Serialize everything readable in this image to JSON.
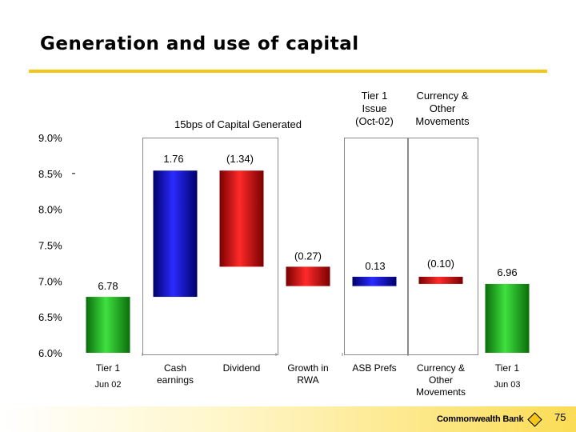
{
  "title": "Generation and use of capital",
  "header_notes": {
    "capital_generated": "15bps of Capital Generated",
    "tier1_issue": [
      "Tier 1",
      "Issue",
      "(Oct-02)"
    ],
    "currency_movements": [
      "Currency &",
      "Other",
      "Movements"
    ]
  },
  "chart_data": {
    "type": "waterfall",
    "y_axis": {
      "min": 6.0,
      "max": 9.0,
      "ticks": [
        "6.0%",
        "6.5%",
        "7.0%",
        "7.5%",
        "8.0%",
        "8.5%",
        "9.0%"
      ],
      "tick_values": [
        6.0,
        6.5,
        7.0,
        7.5,
        8.0,
        8.5,
        9.0
      ]
    },
    "bars": [
      {
        "category": [
          "Tier 1"
        ],
        "sublabel": "Jun 02",
        "label": "6.78",
        "start": 6.0,
        "end": 6.78,
        "color": "#1aa01a"
      },
      {
        "category": [
          "Cash",
          "earnings"
        ],
        "label": "1.76",
        "start": 6.78,
        "end": 8.54,
        "color": "#1010c8"
      },
      {
        "category": [
          "Dividend"
        ],
        "label": "(1.34)",
        "start": 7.2,
        "end": 8.54,
        "color": "#d01010"
      },
      {
        "category": [
          "Growth in",
          "RWA"
        ],
        "label": "(0.27)",
        "start": 6.93,
        "end": 7.2,
        "color": "#d01010"
      },
      {
        "category": [
          "ASB Prefs"
        ],
        "label": "0.13",
        "start": 6.93,
        "end": 7.06,
        "color": "#1010c8"
      },
      {
        "category": [
          "Currency &",
          "Other",
          "Movements"
        ],
        "label": "(0.10)",
        "start": 6.96,
        "end": 7.06,
        "color": "#d01010"
      },
      {
        "category": [
          "Tier 1"
        ],
        "sublabel": "Jun 03",
        "label": "6.96",
        "start": 6.0,
        "end": 6.96,
        "color": "#1aa01a"
      }
    ]
  },
  "footer": {
    "bank_name": "Commonwealth Bank",
    "page_number": "75"
  }
}
